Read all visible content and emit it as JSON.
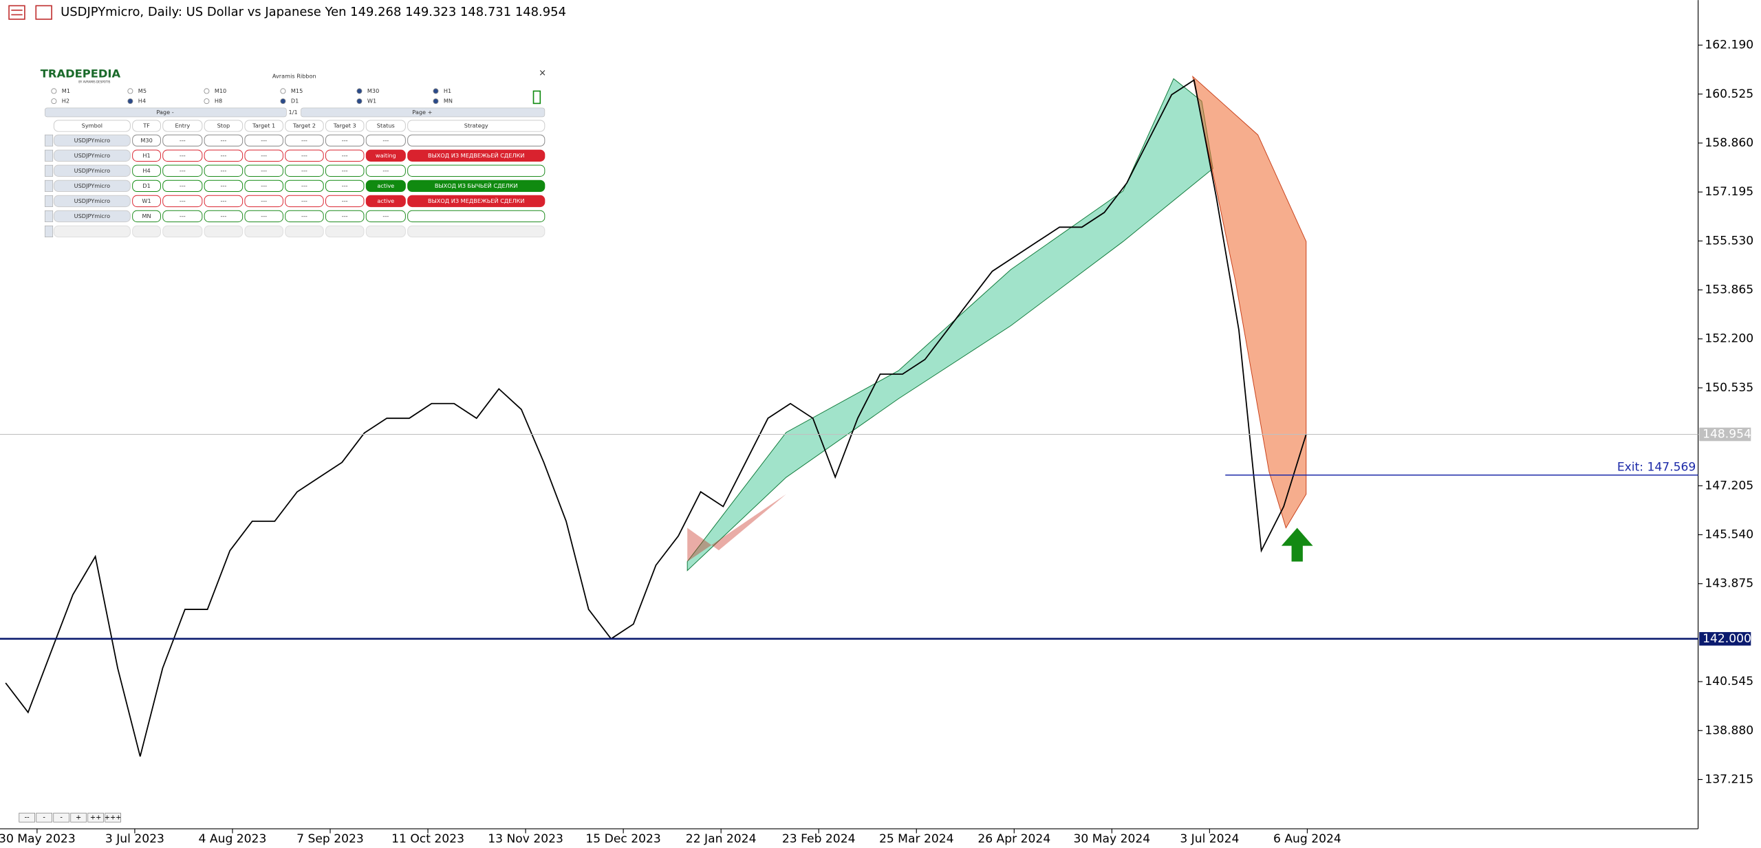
{
  "title_bar": {
    "text": "USDJPYmicro, Daily:  US Dollar vs Japanese Yen  149.268 149.323 148.731 148.954"
  },
  "chart": {
    "prices": [
      140.5,
      139.5,
      141.5,
      143.5,
      144.8,
      141,
      138,
      141,
      143,
      143,
      145,
      146,
      146,
      147,
      147.5,
      148,
      149,
      149.5,
      149.5,
      150,
      150,
      149.5,
      150.5,
      149.8,
      148,
      146,
      143,
      142,
      142.5,
      144.5,
      145.5,
      147,
      146.5,
      148,
      149.5,
      150,
      149.5,
      147.5,
      149.5,
      151,
      151,
      151.5,
      152.5,
      153.5,
      154.5,
      155,
      155.5,
      156,
      156,
      156.5,
      157.5,
      159,
      160.5,
      161,
      157,
      152.5,
      145,
      146.5,
      148.954
    ],
    "color": "#000000",
    "ylim": [
      135.54,
      163.72
    ],
    "yticks": [
      {
        "value": 162.19,
        "label": "162.190"
      },
      {
        "value": 160.525,
        "label": "160.525"
      },
      {
        "value": 158.86,
        "label": "158.860"
      },
      {
        "value": 157.195,
        "label": "157.195"
      },
      {
        "value": 155.53,
        "label": "155.530"
      },
      {
        "value": 153.865,
        "label": "153.865"
      },
      {
        "value": 152.2,
        "label": "152.200"
      },
      {
        "value": 150.535,
        "label": "150.535"
      },
      {
        "value": 147.205,
        "label": "147.205"
      },
      {
        "value": 145.54,
        "label": "145.540"
      },
      {
        "value": 143.875,
        "label": "143.875"
      },
      {
        "value": 140.545,
        "label": "140.545"
      },
      {
        "value": 138.88,
        "label": "138.880"
      },
      {
        "value": 137.215,
        "label": "137.215"
      }
    ],
    "dates": [
      "30 May 2023",
      "3 Jul 2023",
      "4 Aug 2023",
      "7 Sep 2023",
      "11 Oct 2023",
      "13 Nov 2023",
      "15 Dec 2023",
      "22 Jan 2024",
      "23 Feb 2024",
      "25 Mar 2024",
      "26 Apr 2024",
      "30 May 2024",
      "3 Jul 2024",
      "6 Aug 2024"
    ],
    "support": {
      "value": 142,
      "label": "142.000",
      "color": "#0a1a6e"
    },
    "last": {
      "value": 148.954,
      "label": "148.954",
      "color": "#c0c0c0"
    },
    "exit": {
      "value": 147.569,
      "label": "Exit: 147.569",
      "color": "#1c2aa8"
    }
  },
  "panel": {
    "logo": "TRADEPEDIA",
    "logo_sub": "BY AVRAMIS DESPOTIS",
    "title": "Avramis Ribbon",
    "close": "×",
    "timeframes": [
      {
        "label": "M1",
        "checked": false
      },
      {
        "label": "M5",
        "checked": false
      },
      {
        "label": "M10",
        "checked": false
      },
      {
        "label": "M15",
        "checked": false
      },
      {
        "label": "M30",
        "checked": true
      },
      {
        "label": "H1",
        "checked": true
      },
      {
        "label": "H2",
        "checked": false
      },
      {
        "label": "H4",
        "checked": true
      },
      {
        "label": "H8",
        "checked": false
      },
      {
        "label": "D1",
        "checked": true
      },
      {
        "label": "W1",
        "checked": true
      },
      {
        "label": "MN",
        "checked": true
      }
    ],
    "page_prev": "Page -",
    "page_info": "1/1",
    "page_next": "Page +",
    "headers": [
      "Symbol",
      "TF",
      "Entry",
      "Stop",
      "Target 1",
      "Target 2",
      "Target 3",
      "Status",
      "Strategy"
    ],
    "rows": [
      {
        "cells": [
          "USDJPYmicro",
          "M30",
          "---",
          "---",
          "---",
          "---",
          "---",
          "---"
        ],
        "color": "#888888"
      },
      {
        "cells": [
          "USDJPYmicro",
          "H1",
          "---",
          "---",
          "---",
          "---",
          "---",
          "waiting",
          "ВЫХОД ИЗ МЕДВЕЖЬЕЙ СДЕЛКИ"
        ],
        "color": "#d9222e"
      },
      {
        "cells": [
          "USDJPYmicro",
          "H4",
          "---",
          "---",
          "---",
          "---",
          "---",
          "---"
        ],
        "color": "#1b8a1b"
      },
      {
        "cells": [
          "USDJPYmicro",
          "D1",
          "---",
          "---",
          "---",
          "---",
          "---",
          "active",
          "ВЫХОД ИЗ БЫЧЬЕЙ СДЕЛКИ"
        ],
        "color": "#108a10"
      },
      {
        "cells": [
          "USDJPYmicro",
          "W1",
          "---",
          "---",
          "---",
          "---",
          "---",
          "active",
          "ВЫХОД ИЗ МЕДВЕЖЬЕЙ СДЕЛКИ"
        ],
        "color": "#d9222e"
      },
      {
        "cells": [
          "USDJPYmicro",
          "MN",
          "---",
          "---",
          "---",
          "---",
          "---",
          "---"
        ],
        "color": "#1b8a1b"
      }
    ]
  },
  "zoom_buttons": [
    "--",
    "-",
    "-",
    "+",
    "++",
    "+++"
  ]
}
